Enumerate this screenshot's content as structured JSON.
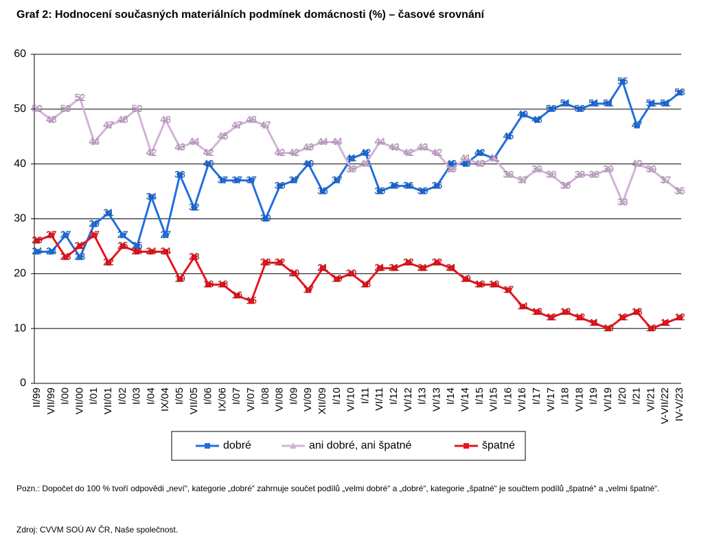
{
  "chart_data": {
    "type": "line",
    "title": "Graf 2: Hodnocení současných materiálních podmínek domácnosti (%) – časové srovnání",
    "categories": [
      "II/99",
      "VII/99",
      "I/00",
      "VII/00",
      "I/01",
      "VII/01",
      "I/02",
      "I/03",
      "I/04",
      "IX/04",
      "I/05",
      "VII/05",
      "I/06",
      "IX/06",
      "I/07",
      "VI/07",
      "I/08",
      "VI/08",
      "I/09",
      "VI/09",
      "XII/09",
      "I/10",
      "VI/10",
      "I/11",
      "VI/11",
      "I/12",
      "VI/12",
      "I/13",
      "VI/13",
      "I/14",
      "VI/14",
      "I/15",
      "VI/15",
      "I/16",
      "VI/16",
      "I/17",
      "VI/17",
      "I/18",
      "VI/18",
      "I/19",
      "VI/19",
      "I/20",
      "I/21",
      "VI/21",
      "V-VII/22",
      "IV-V/23"
    ],
    "series": [
      {
        "name": "dobré",
        "color": "#1f6fe0",
        "marker": "square",
        "values": [
          24,
          24,
          27,
          23,
          29,
          31,
          27,
          25,
          34,
          27,
          38,
          32,
          40,
          37,
          37,
          37,
          30,
          36,
          37,
          40,
          35,
          37,
          41,
          42,
          35,
          36,
          36,
          35,
          36,
          40,
          40,
          42,
          41,
          45,
          49,
          48,
          50,
          51,
          50,
          51,
          51,
          55,
          47,
          51,
          51,
          53
        ]
      },
      {
        "name": "ani dobré, ani špatné",
        "color": "#d3b2d9",
        "marker": "triangle",
        "values": [
          50,
          48,
          50,
          52,
          44,
          47,
          48,
          50,
          42,
          48,
          43,
          44,
          42,
          45,
          47,
          48,
          47,
          42,
          42,
          43,
          44,
          44,
          39,
          40,
          44,
          43,
          42,
          43,
          42,
          39,
          41,
          40,
          41,
          38,
          37,
          39,
          38,
          36,
          38,
          38,
          39,
          33,
          40,
          39,
          37,
          35
        ]
      },
      {
        "name": "špatné",
        "color": "#e8141c",
        "marker": "square",
        "values": [
          26,
          27,
          23,
          25,
          27,
          22,
          25,
          24,
          24,
          24,
          19,
          23,
          18,
          18,
          16,
          15,
          22,
          22,
          20,
          17,
          21,
          19,
          20,
          18,
          21,
          21,
          22,
          21,
          22,
          21,
          19,
          18,
          18,
          17,
          14,
          13,
          12,
          13,
          12,
          11,
          10,
          12,
          13,
          10,
          11,
          12
        ]
      }
    ],
    "ylim": [
      0,
      60
    ],
    "yticks": [
      0,
      10,
      20,
      30,
      40,
      50,
      60
    ],
    "grid": true,
    "data_labels": true,
    "legend": "bottom",
    "note": "Pozn.: Dopočet do 100 % tvoří odpovědi „neví“, kategorie „dobré“ zahrnuje součet podílů „velmi dobré“ a „dobré“, kategorie „špatné“ je součtem podílů „špatné“ a „velmi špatné“.",
    "source": "Zdroj: CVVM SOÚ AV ČR, Naše společnost."
  }
}
